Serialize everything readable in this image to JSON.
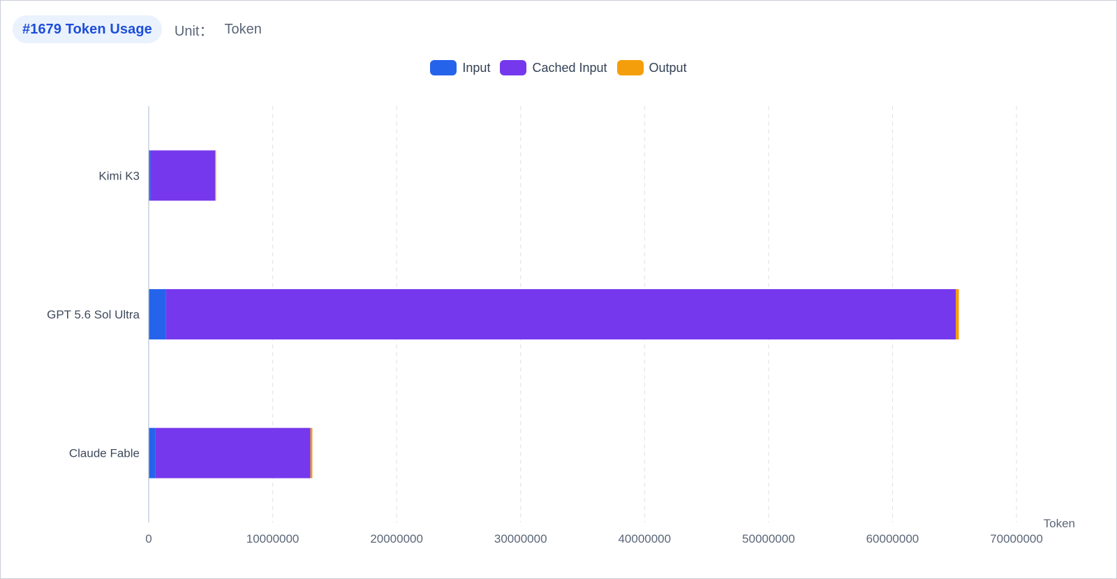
{
  "header": {
    "title": "#1679 Token Usage",
    "unit_label": "Unit：",
    "unit_value": "Token"
  },
  "colors": {
    "input": "#2563eb",
    "cached_input": "#7638ec",
    "output": "#f59e0b",
    "grid": "#e2e6ec",
    "axis": "#b8c3d1"
  },
  "chart_data": {
    "type": "bar",
    "orientation": "horizontal",
    "stacked": true,
    "categories": [
      "Kimi K3",
      "GPT 5.6 Sol Ultra",
      "Claude Fable"
    ],
    "series": [
      {
        "name": "Input",
        "color": "#2563eb",
        "values": [
          150000,
          1400000,
          550000
        ]
      },
      {
        "name": "Cached Input",
        "color": "#7638ec",
        "values": [
          5200000,
          63700000,
          12500000
        ]
      },
      {
        "name": "Output",
        "color": "#f59e0b",
        "values": [
          50000,
          250000,
          150000
        ]
      }
    ],
    "xlabel": "Token",
    "xlim": [
      0,
      70000000
    ],
    "xticks": [
      "0",
      "10000000",
      "20000000",
      "30000000",
      "40000000",
      "50000000",
      "60000000",
      "70000000"
    ],
    "xtick_values": [
      0,
      10000000,
      20000000,
      30000000,
      40000000,
      50000000,
      60000000,
      70000000
    ],
    "grid": true,
    "legend_position": "top-center"
  }
}
